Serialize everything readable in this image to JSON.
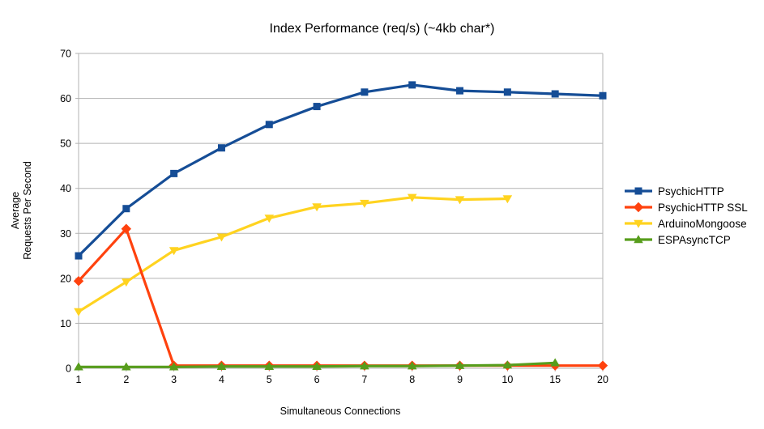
{
  "chart_data": {
    "type": "line",
    "title": "Index Performance (req/s) (~4kb char*)",
    "xlabel": "Simultaneous Connections",
    "ylabel_lines": [
      "Average",
      "Requests Per Second"
    ],
    "categories": [
      "1",
      "2",
      "3",
      "4",
      "5",
      "6",
      "7",
      "8",
      "9",
      "10",
      "15",
      "20"
    ],
    "ylim": [
      0,
      70
    ],
    "ytick_step": 10,
    "grid": "horizontal",
    "legend_position": "right",
    "series": [
      {
        "name": "PsychicHTTP",
        "color": "#154d96",
        "marker": "square",
        "values": [
          25.0,
          35.5,
          43.3,
          49.0,
          54.2,
          58.2,
          61.4,
          63.0,
          61.7,
          61.4,
          61.0,
          60.6
        ]
      },
      {
        "name": "PsychicHTTP SSL",
        "color": "#ff420e",
        "marker": "diamond",
        "values": [
          19.4,
          31.0,
          0.6,
          0.6,
          0.6,
          0.6,
          0.6,
          0.6,
          0.6,
          0.6,
          0.6,
          0.6
        ]
      },
      {
        "name": "ArduinoMongoose",
        "color": "#ffd320",
        "marker": "triangle-down",
        "values": [
          12.6,
          19.2,
          26.2,
          29.2,
          33.4,
          35.9,
          36.7,
          38.0,
          37.5,
          37.7,
          null,
          null
        ]
      },
      {
        "name": "ESPAsyncTCP",
        "color": "#579d1c",
        "marker": "triangle-up",
        "values": [
          0.3,
          0.3,
          0.3,
          0.4,
          0.4,
          0.4,
          0.5,
          0.5,
          0.6,
          0.7,
          1.2,
          null
        ]
      }
    ],
    "draw_order": [
      2,
      1,
      3,
      0
    ],
    "axis_color": "#b3b3b3",
    "text_color": "#000000"
  }
}
